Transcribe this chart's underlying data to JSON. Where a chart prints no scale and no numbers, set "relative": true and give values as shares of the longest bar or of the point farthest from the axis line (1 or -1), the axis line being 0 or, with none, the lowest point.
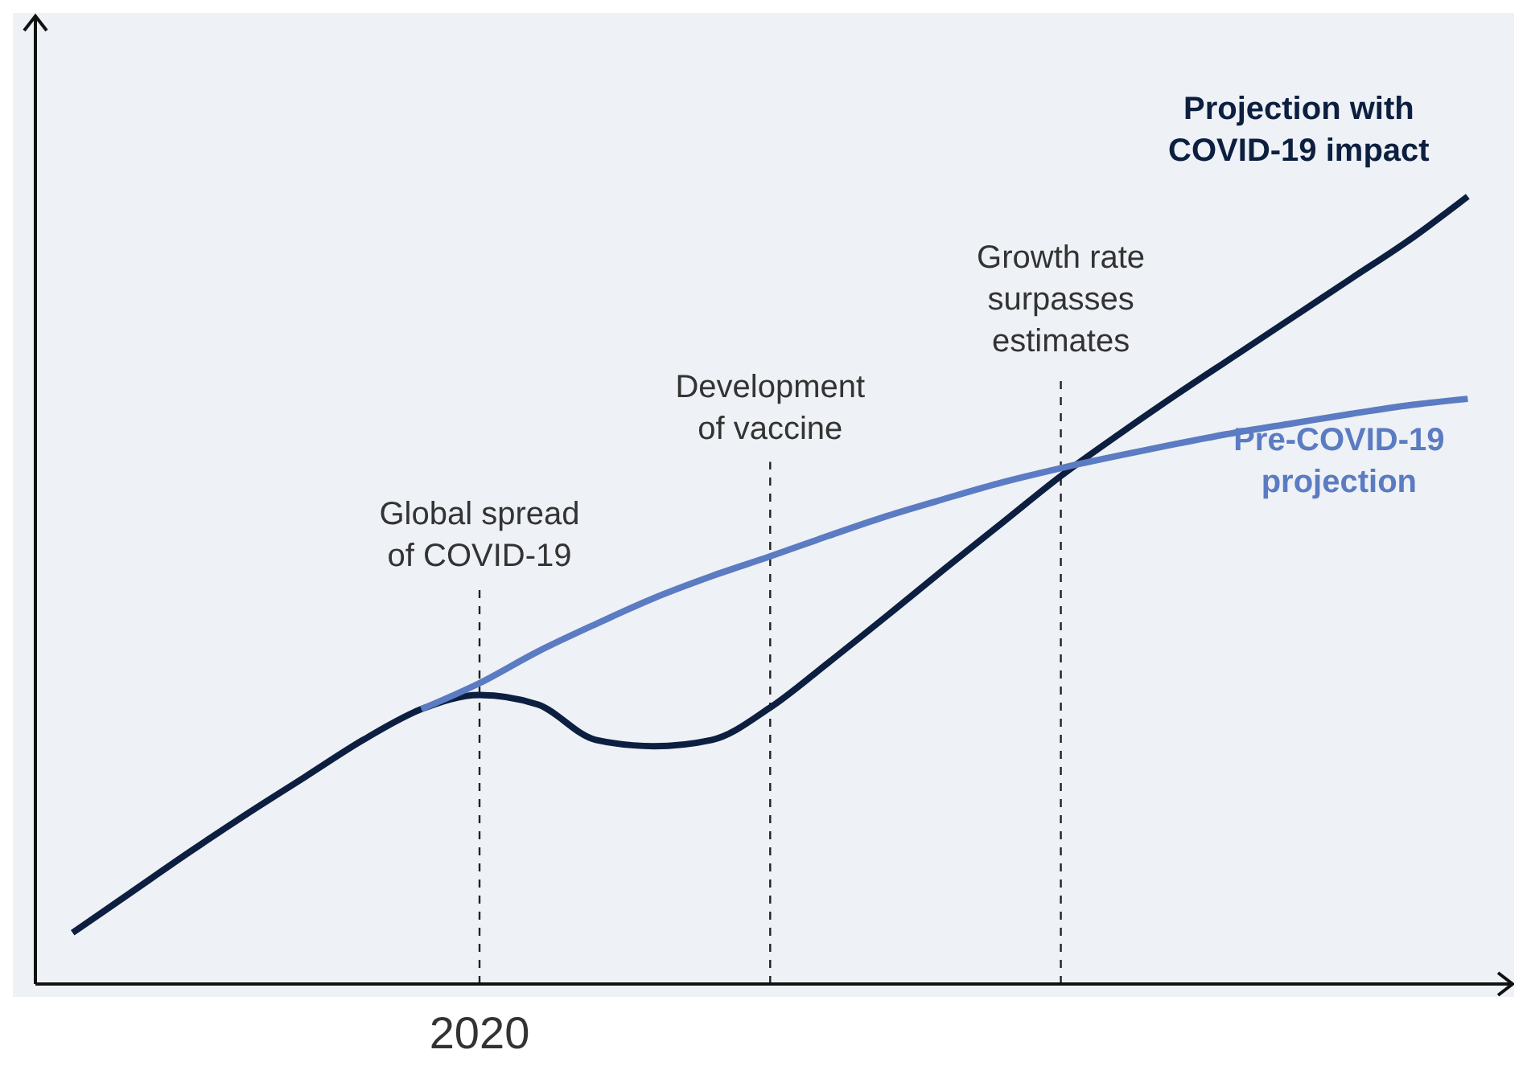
{
  "chart_data": {
    "type": "line",
    "relative": true,
    "marker": "none",
    "categories": [
      null,
      null,
      null,
      null,
      null,
      null,
      null,
      null,
      null,
      null,
      null,
      null,
      null,
      null,
      null,
      null,
      null,
      null,
      null,
      null,
      null,
      null,
      null,
      null,
      null
    ],
    "series": [
      {
        "name": "Projection with COVID-19 impact",
        "color": "#0d1f40",
        "values": [
          0.065,
          0.116,
          0.167,
          0.216,
          0.263,
          0.31,
          0.349,
          0.367,
          0.355,
          0.31,
          0.302,
          0.31,
          0.351,
          0.408,
          0.467,
          0.527,
          0.586,
          0.645,
          0.698,
          0.749,
          0.798,
          0.847,
          0.896,
          0.945,
          1
        ]
      },
      {
        "name": "Pre-COVID-19 projection",
        "color": "#5b7bc2",
        "values": [
          null,
          null,
          null,
          null,
          null,
          null,
          0.349,
          0.382,
          0.422,
          0.457,
          0.49,
          0.518,
          0.543,
          0.569,
          0.594,
          0.616,
          0.637,
          0.655,
          0.671,
          0.686,
          0.7,
          0.712,
          0.724,
          0.735,
          0.743
        ]
      }
    ],
    "annotations": [
      "2020",
      "Global spread of COVID-19",
      "Development of vaccine",
      "Growth rate surpasses estimates"
    ]
  }
}
